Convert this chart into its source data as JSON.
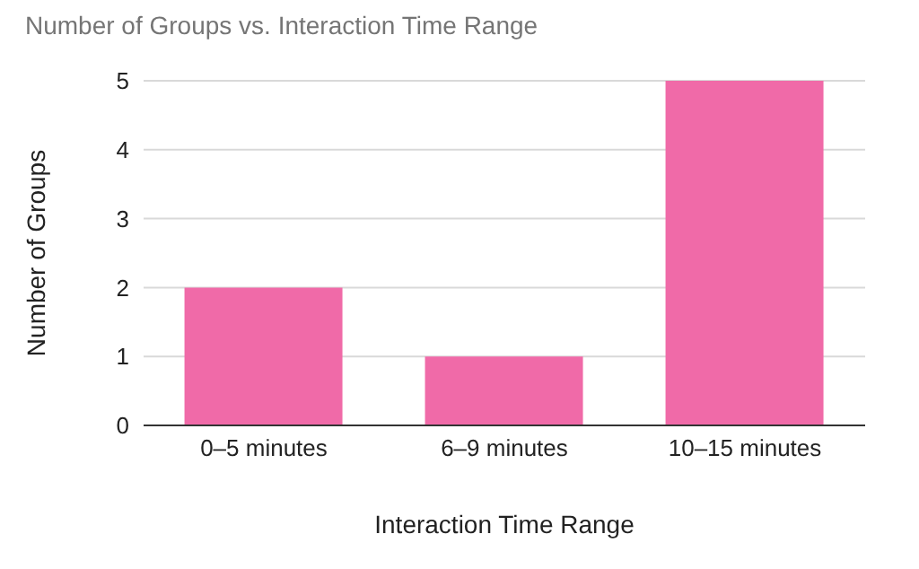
{
  "chart_data": {
    "type": "bar",
    "title": "Number of Groups vs. Interaction Time Range",
    "xlabel": "Interaction Time Range",
    "ylabel": "Number of Groups",
    "categories": [
      "0–5 minutes",
      "6–9 minutes",
      "10–15 minutes"
    ],
    "values": [
      2,
      1,
      5
    ],
    "color": "#f06aa8",
    "ylim": [
      0,
      5
    ],
    "yticks": [
      0,
      1,
      2,
      3,
      4,
      5
    ],
    "grid": "y"
  }
}
